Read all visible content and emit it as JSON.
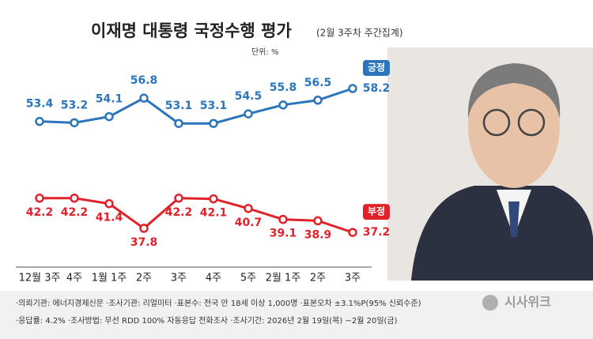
{
  "chart_data": {
    "type": "line",
    "title": "이재명 대통령 국정수행 평가",
    "subtitle": "(2월 3주차 주간집계)",
    "unit_label": "단위: %",
    "categories": [
      "12월 3주",
      "4주",
      "1월 1주",
      "2주",
      "3주",
      "4주",
      "5주",
      "2월 1주",
      "2주",
      "3주"
    ],
    "series": [
      {
        "name": "긍정",
        "color": "#2a75bb",
        "values": [
          53.4,
          53.2,
          54.1,
          56.8,
          53.1,
          53.1,
          54.5,
          55.8,
          56.5,
          58.2
        ]
      },
      {
        "name": "부정",
        "color": "#e2222b",
        "values": [
          42.2,
          42.2,
          41.4,
          37.8,
          42.2,
          42.1,
          40.7,
          39.1,
          38.9,
          37.2
        ]
      }
    ],
    "ylim": [
      35,
      60
    ]
  },
  "notes": [
    "·의뢰기관: 에너지경제신문 ·조사기관: 리얼미터 ·표본수: 전국 만 18세 이상 1,000명 ·표본오차 ±3.1%P(95% 신뢰수준)",
    "·응답률: 4.2% ·조사방법: 무선 RDD 100% 자동응답 전화조사 ·조사기간: 2026년 2월 19일(목) ~2월 20일(금)"
  ],
  "logo": "시사위크"
}
